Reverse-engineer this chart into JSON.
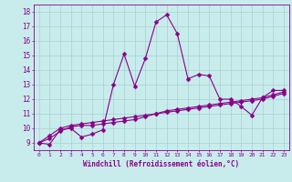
{
  "xlabel": "Windchill (Refroidissement éolien,°C)",
  "background_color": "#c8ecec",
  "grid_color": "#a8d0d0",
  "line_color": "#880088",
  "x_values": [
    0,
    1,
    2,
    3,
    4,
    5,
    6,
    7,
    8,
    9,
    10,
    11,
    12,
    13,
    14,
    15,
    16,
    17,
    18,
    19,
    20,
    21,
    22,
    23
  ],
  "line1_y": [
    9.0,
    8.9,
    9.9,
    10.0,
    9.4,
    9.6,
    9.9,
    13.0,
    15.1,
    12.9,
    14.8,
    17.3,
    17.8,
    16.5,
    13.4,
    13.7,
    13.6,
    12.0,
    12.0,
    11.5,
    10.9,
    12.1,
    12.6,
    12.6
  ],
  "line2_y": [
    9.0,
    9.3,
    9.8,
    10.1,
    10.2,
    10.2,
    10.3,
    10.4,
    10.5,
    10.6,
    10.8,
    11.0,
    11.2,
    11.3,
    11.4,
    11.5,
    11.6,
    11.7,
    11.8,
    11.9,
    12.0,
    12.1,
    12.3,
    12.5
  ],
  "line3_y": [
    9.0,
    9.5,
    10.0,
    10.2,
    10.3,
    10.4,
    10.5,
    10.6,
    10.7,
    10.8,
    10.9,
    11.0,
    11.1,
    11.2,
    11.3,
    11.4,
    11.5,
    11.6,
    11.7,
    11.8,
    11.9,
    12.0,
    12.2,
    12.4
  ],
  "ylim": [
    8.5,
    18.5
  ],
  "xlim": [
    -0.5,
    23.5
  ],
  "yticks": [
    9,
    10,
    11,
    12,
    13,
    14,
    15,
    16,
    17,
    18
  ],
  "xticks": [
    0,
    1,
    2,
    3,
    4,
    5,
    6,
    7,
    8,
    9,
    10,
    11,
    12,
    13,
    14,
    15,
    16,
    17,
    18,
    19,
    20,
    21,
    22,
    23
  ]
}
